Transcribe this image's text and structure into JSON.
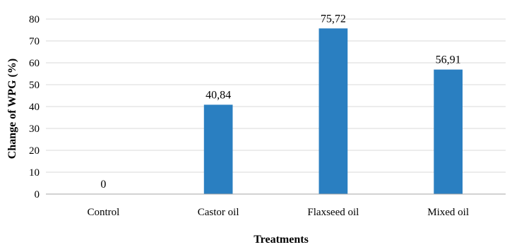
{
  "chart_data": {
    "type": "bar",
    "categories": [
      "Control",
      "Castor oil",
      "Flaxseed oil",
      "Mixed oil"
    ],
    "values": [
      0,
      40.84,
      75.72,
      56.91
    ],
    "data_labels": [
      "0",
      "40,84",
      "75,72",
      "56,91"
    ],
    "xlabel": "Treatments",
    "ylabel": "Change of WPG (%)",
    "ylim": [
      0,
      80
    ],
    "yticks": [
      0,
      10,
      20,
      30,
      40,
      50,
      60,
      70,
      80
    ],
    "grid": "horizontal",
    "legend": "none",
    "bar_color": "#2a7fc1",
    "grid_color": "#d9d9d9",
    "axis_color": "#a6a6a6"
  }
}
